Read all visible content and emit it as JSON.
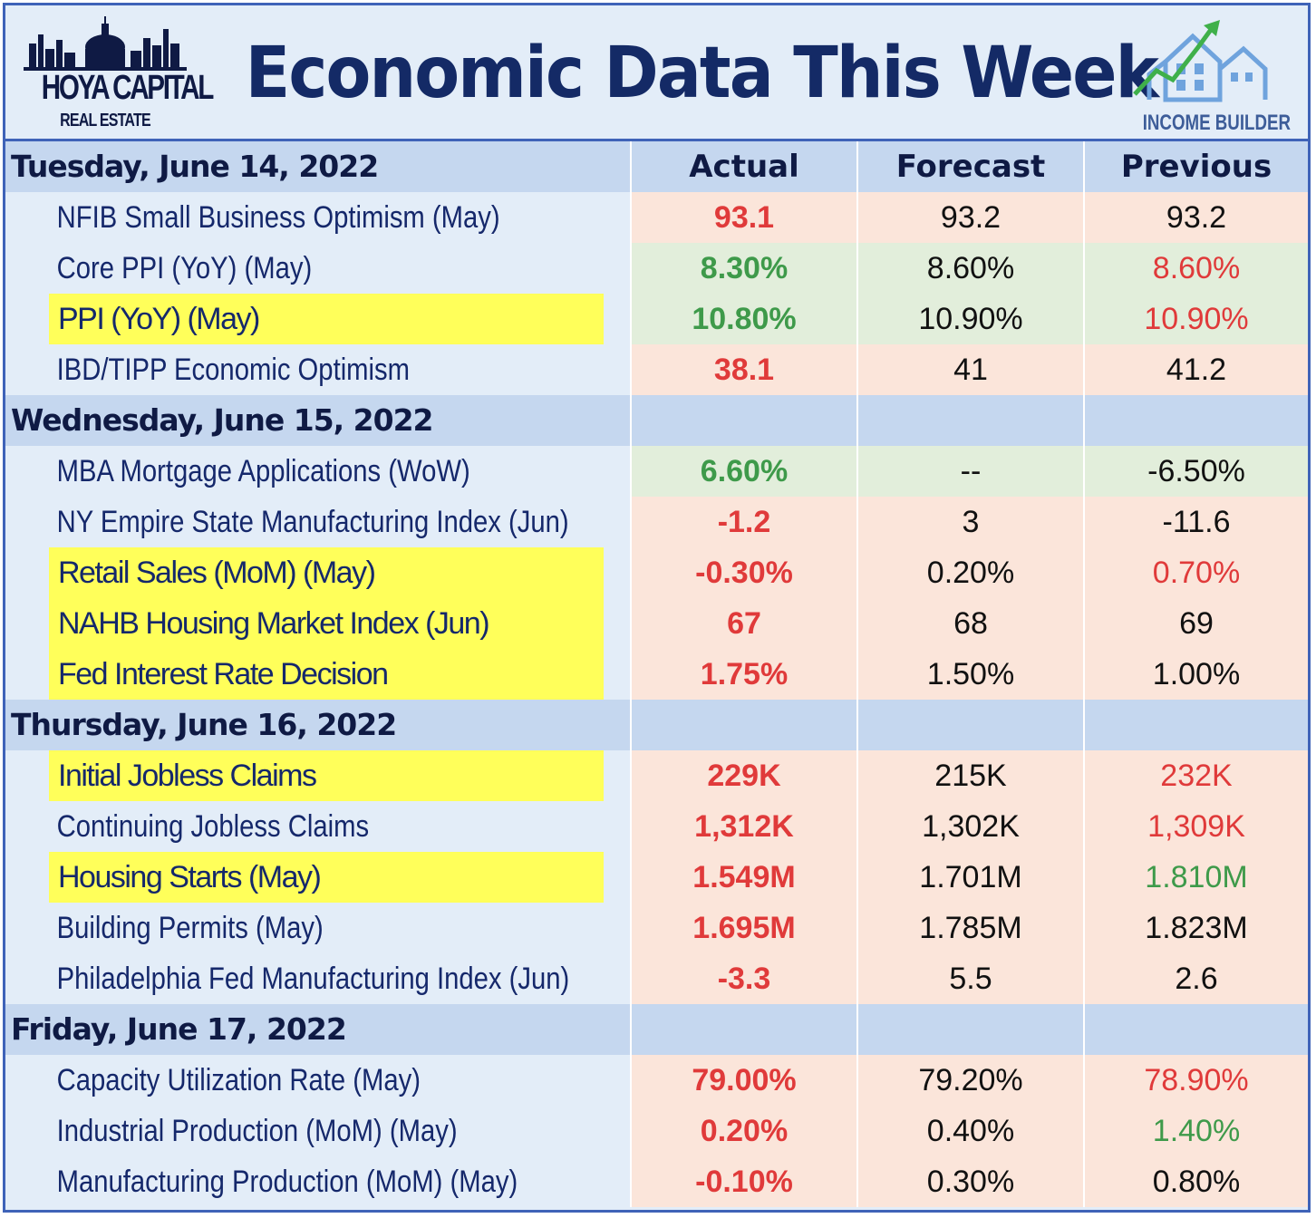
{
  "header": {
    "title": "Economic Data This Week",
    "logo_left_text": "HOYA CAPITAL",
    "logo_left_sub": "REAL ESTATE",
    "logo_right_sub": "INCOME BUILDER"
  },
  "columns": {
    "actual": "Actual",
    "forecast": "Forecast",
    "previous": "Previous"
  },
  "colors": {
    "red_bg": "#fbe5da",
    "green_bg": "#e2eedb",
    "highlight": "#ffff5a",
    "red_text": "#e03a3a",
    "green_text": "#3e9a4a"
  },
  "rows": [
    {
      "type": "day",
      "label": "Tuesday, June 14, 2022",
      "show_headers": true
    },
    {
      "type": "item",
      "label": "NFIB Small Business Optimism (May)",
      "actual": "93.1",
      "forecast": "93.2",
      "previous": "93.2",
      "highlight": false,
      "row_tone": "red",
      "actual_tone": "red",
      "previous_tone": "dark"
    },
    {
      "type": "item",
      "label": "Core PPI (YoY) (May)",
      "actual": "8.30%",
      "forecast": "8.60%",
      "previous": "8.60%",
      "highlight": false,
      "row_tone": "green",
      "actual_tone": "green",
      "previous_tone": "red"
    },
    {
      "type": "item",
      "label": "PPI (YoY) (May)",
      "actual": "10.80%",
      "forecast": "10.90%",
      "previous": "10.90%",
      "highlight": true,
      "row_tone": "green",
      "actual_tone": "green",
      "previous_tone": "red"
    },
    {
      "type": "item",
      "label": "IBD/TIPP Economic Optimism",
      "actual": "38.1",
      "forecast": "41",
      "previous": "41.2",
      "highlight": false,
      "row_tone": "red",
      "actual_tone": "red",
      "previous_tone": "dark"
    },
    {
      "type": "day",
      "label": "Wednesday, June 15, 2022",
      "show_headers": false
    },
    {
      "type": "item",
      "label": "MBA Mortgage Applications (WoW)",
      "actual": "6.60%",
      "forecast": "--",
      "previous": "-6.50%",
      "highlight": false,
      "row_tone": "green",
      "actual_tone": "green",
      "previous_tone": "dark"
    },
    {
      "type": "item",
      "label": "NY Empire State Manufacturing Index (Jun)",
      "actual": "-1.2",
      "forecast": "3",
      "previous": "-11.6",
      "highlight": false,
      "row_tone": "red",
      "actual_tone": "red",
      "previous_tone": "dark"
    },
    {
      "type": "item",
      "label": "Retail Sales (MoM) (May)",
      "actual": "-0.30%",
      "forecast": "0.20%",
      "previous": "0.70%",
      "highlight": true,
      "row_tone": "red",
      "actual_tone": "red",
      "previous_tone": "red"
    },
    {
      "type": "item",
      "label": "NAHB Housing Market Index (Jun)",
      "actual": "67",
      "forecast": "68",
      "previous": "69",
      "highlight": true,
      "row_tone": "red",
      "actual_tone": "red",
      "previous_tone": "dark"
    },
    {
      "type": "item",
      "label": "Fed Interest Rate Decision",
      "actual": "1.75%",
      "forecast": "1.50%",
      "previous": "1.00%",
      "highlight": true,
      "row_tone": "red",
      "actual_tone": "red",
      "previous_tone": "dark"
    },
    {
      "type": "day",
      "label": "Thursday, June 16, 2022",
      "show_headers": false
    },
    {
      "type": "item",
      "label": "Initial Jobless Claims",
      "actual": "229K",
      "forecast": "215K",
      "previous": "232K",
      "highlight": true,
      "row_tone": "red",
      "actual_tone": "red",
      "previous_tone": "red"
    },
    {
      "type": "item",
      "label": "Continuing Jobless Claims",
      "actual": "1,312K",
      "forecast": "1,302K",
      "previous": "1,309K",
      "highlight": false,
      "row_tone": "red",
      "actual_tone": "red",
      "previous_tone": "red"
    },
    {
      "type": "item",
      "label": "Housing Starts (May)",
      "actual": "1.549M",
      "forecast": "1.701M",
      "previous": "1.810M",
      "highlight": true,
      "row_tone": "red",
      "actual_tone": "red",
      "previous_tone": "green"
    },
    {
      "type": "item",
      "label": "Building Permits (May)",
      "actual": "1.695M",
      "forecast": "1.785M",
      "previous": "1.823M",
      "highlight": false,
      "row_tone": "red",
      "actual_tone": "red",
      "previous_tone": "dark"
    },
    {
      "type": "item",
      "label": "Philadelphia Fed Manufacturing Index (Jun)",
      "actual": "-3.3",
      "forecast": "5.5",
      "previous": "2.6",
      "highlight": false,
      "row_tone": "red",
      "actual_tone": "red",
      "previous_tone": "dark"
    },
    {
      "type": "day",
      "label": "Friday, June 17, 2022",
      "show_headers": false
    },
    {
      "type": "item",
      "label": "Capacity Utilization Rate (May)",
      "actual": "79.00%",
      "forecast": "79.20%",
      "previous": "78.90%",
      "highlight": false,
      "row_tone": "red",
      "actual_tone": "red",
      "previous_tone": "red"
    },
    {
      "type": "item",
      "label": "Industrial Production (MoM) (May)",
      "actual": "0.20%",
      "forecast": "0.40%",
      "previous": "1.40%",
      "highlight": false,
      "row_tone": "red",
      "actual_tone": "red",
      "previous_tone": "green"
    },
    {
      "type": "item",
      "label": "Manufacturing Production (MoM) (May)",
      "actual": "-0.10%",
      "forecast": "0.30%",
      "previous": "0.80%",
      "highlight": false,
      "row_tone": "red",
      "actual_tone": "red",
      "previous_tone": "dark"
    }
  ]
}
